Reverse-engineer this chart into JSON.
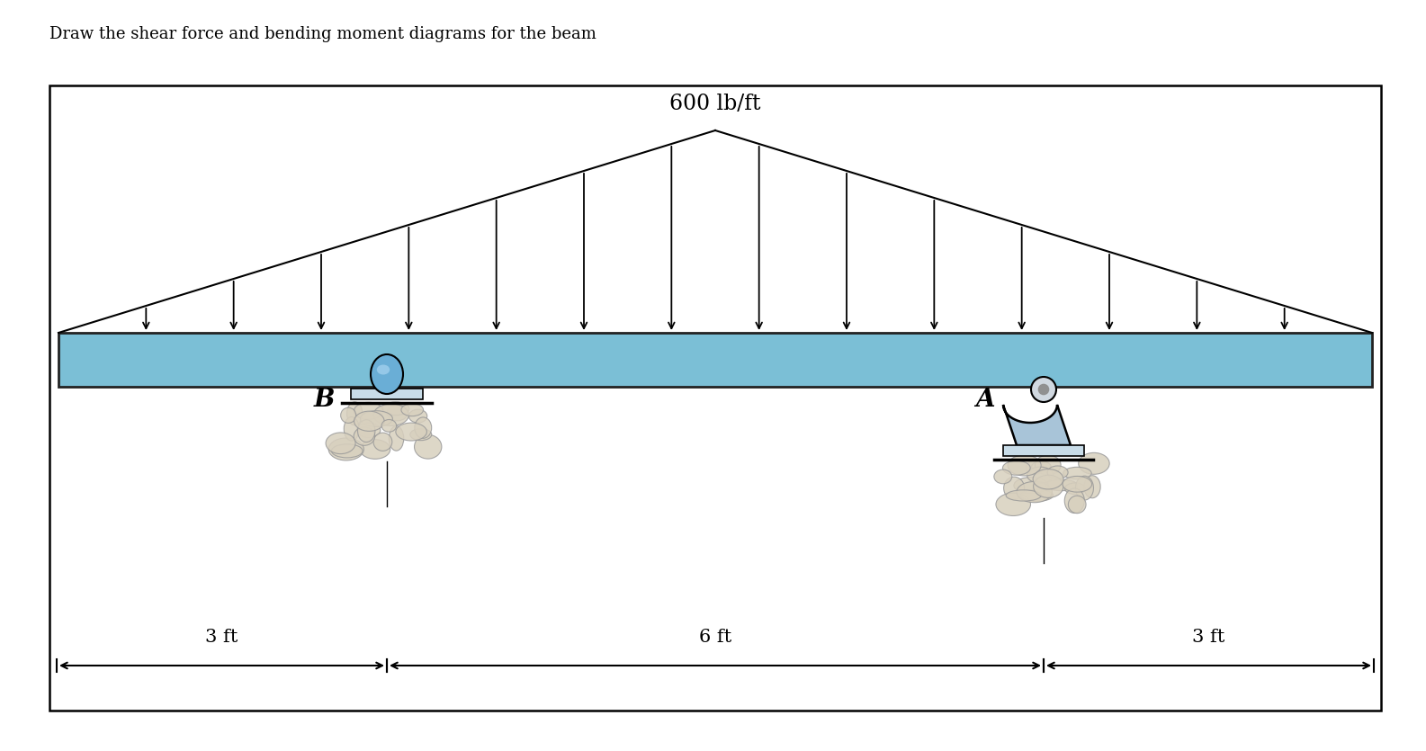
{
  "title": "Draw the shear force and bending moment diagrams for the beam",
  "load_label": "600 lb/ft",
  "beam_color": "#7bbfd6",
  "beam_outline": "#222222",
  "background": "#ffffff",
  "label_B": "B",
  "label_A": "A",
  "dim_left": "3 ft",
  "dim_mid": "6 ft",
  "dim_right": "3 ft",
  "title_fontsize": 13,
  "load_label_fontsize": 17,
  "dim_fontsize": 15,
  "label_fontsize": 20
}
